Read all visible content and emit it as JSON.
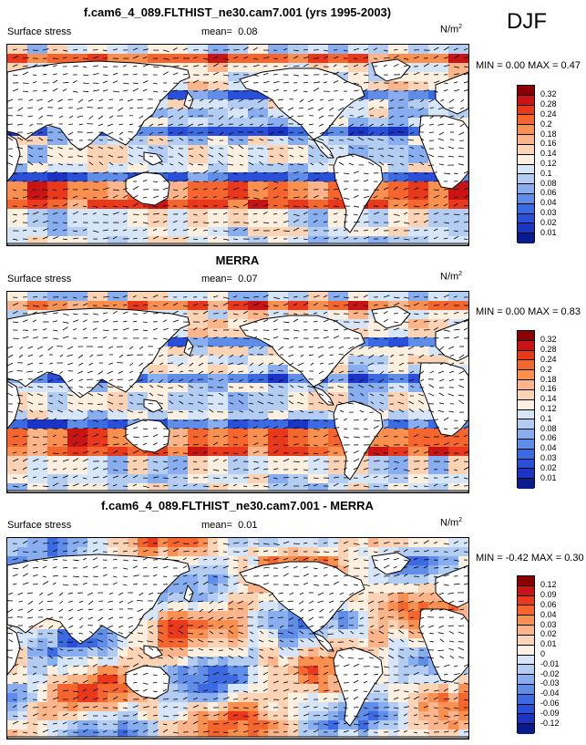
{
  "season": "DJF",
  "panels": [
    {
      "title": "f.cam6_4_089.FLTHIST_ne30.cam7.001 (yrs 1995-2003)",
      "variable": "Surface stress",
      "mean_label": "mean=",
      "mean_value": "0.08",
      "units": "N/m",
      "units_exp": "2",
      "minmax": "MIN =  0.00 MAX =  0.47",
      "colorbar_levels": [
        "0.32",
        "0.28",
        "0.24",
        "0.2",
        "0.18",
        "0.16",
        "0.14",
        "0.12",
        "0.1",
        "0.08",
        "0.06",
        "0.04",
        "0.03",
        "0.02",
        "0.01"
      ],
      "colorbar_colors": [
        "#8b0000",
        "#c81414",
        "#e8391c",
        "#f5652e",
        "#f9904f",
        "#fcb48a",
        "#fdd3b5",
        "#fdf0e0",
        "#d7e5f8",
        "#b3cdf2",
        "#89aef0",
        "#5f8de8",
        "#3c6ae0",
        "#2a4fd8",
        "#1a34c4",
        "#0a1c8c"
      ],
      "style": "full"
    },
    {
      "title": "MERRA",
      "variable": "Surface stress",
      "mean_label": "mean=",
      "mean_value": "0.07",
      "units": "N/m",
      "units_exp": "2",
      "minmax": "MIN =  0.00 MAX =  0.83",
      "colorbar_levels": [
        "0.32",
        "0.28",
        "0.24",
        "0.2",
        "0.18",
        "0.16",
        "0.14",
        "0.12",
        "0.1",
        "0.08",
        "0.06",
        "0.04",
        "0.03",
        "0.02",
        "0.01"
      ],
      "colorbar_colors": [
        "#8b0000",
        "#c81414",
        "#e8391c",
        "#f5652e",
        "#f9904f",
        "#fcb48a",
        "#fdd3b5",
        "#fdf0e0",
        "#d7e5f8",
        "#b3cdf2",
        "#89aef0",
        "#5f8de8",
        "#3c6ae0",
        "#2a4fd8",
        "#1a34c4",
        "#0a1c8c"
      ],
      "style": "full"
    },
    {
      "title": "f.cam6_4_089.FLTHIST_ne30.cam7.001 - MERRA",
      "variable": "Surface stress",
      "mean_label": "mean=",
      "mean_value": "0.01",
      "units": "N/m",
      "units_exp": "2",
      "minmax": "MIN = -0.42 MAX =  0.30",
      "colorbar_levels": [
        "0.12",
        "0.09",
        "0.06",
        "0.04",
        "0.03",
        "0.02",
        "0.01",
        "0",
        "-0.01",
        "-0.02",
        "-0.03",
        "-0.04",
        "-0.06",
        "-0.09",
        "-0.12"
      ],
      "colorbar_colors": [
        "#8b0000",
        "#c81414",
        "#e8391c",
        "#f5652e",
        "#f9904f",
        "#fcb48a",
        "#fdd3b5",
        "#fdf0e0",
        "#d7e5f8",
        "#b3cdf2",
        "#89aef0",
        "#5f8de8",
        "#3c6ae0",
        "#2a4fd8",
        "#1a34c4",
        "#0a1c8c"
      ],
      "style": "diff"
    }
  ]
}
